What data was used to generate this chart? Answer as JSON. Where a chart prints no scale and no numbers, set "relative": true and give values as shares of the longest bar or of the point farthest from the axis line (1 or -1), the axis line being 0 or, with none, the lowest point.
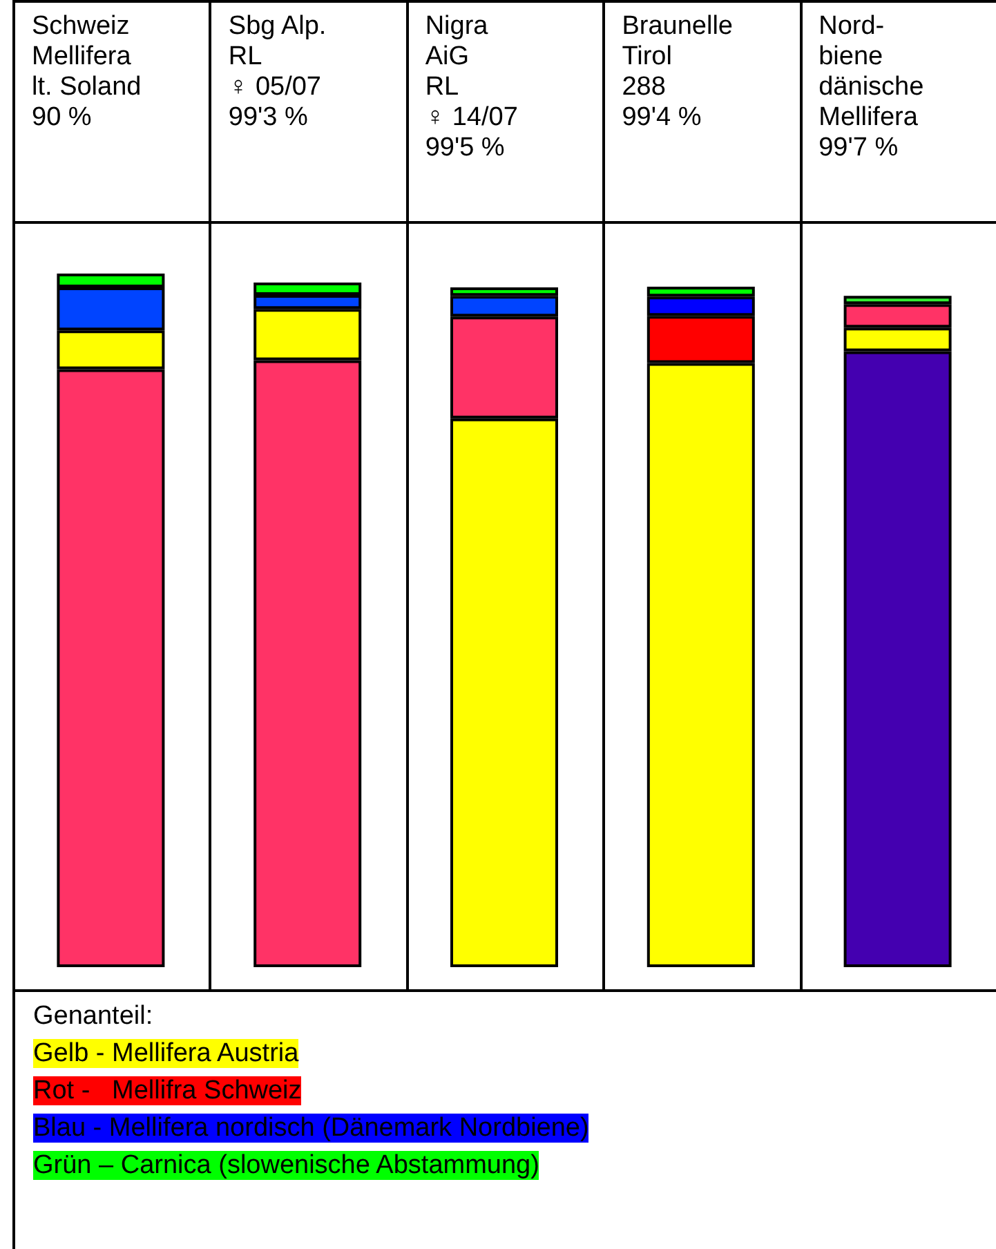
{
  "chart_data": {
    "type": "bar",
    "stacked": true,
    "relative": true,
    "categories": [
      "Schweiz\nMellifera\nlt. Soland\n90 %",
      "Sbg Alp.\nRL\n♀ 05/07\n99'3 %",
      "Nigra\nAiG\nRL\n♀ 14/07\n99'5 %",
      "Braunelle\nTirol\n288\n99'4 %",
      "Nord-\nbiene\ndänische\nMellifera\n99'7 %"
    ],
    "series": [
      {
        "colors": [
          "#ff3366",
          "#ff3366",
          "#ffff00",
          "#ffff00",
          "#4400b0"
        ],
        "values": [
          0.862,
          0.875,
          0.791,
          0.871,
          0.888
        ]
      },
      {
        "colors": [
          "#ffff00",
          "#ffff00",
          "#ff3366",
          "#ff0000",
          "#ffff00"
        ],
        "values": [
          0.056,
          0.074,
          0.147,
          0.068,
          0.034
        ]
      },
      {
        "colors": [
          "#0044ff",
          "#0044ff",
          "#0044ff",
          "#0000ff",
          "#ff3366"
        ],
        "values": [
          0.062,
          0.02,
          0.03,
          0.028,
          0.034
        ]
      },
      {
        "colors": [
          "#00ff00",
          "#00ff00",
          "#00ff00",
          "#00ff00",
          "#33ee33"
        ],
        "values": [
          0.02,
          0.018,
          0.012,
          0.014,
          0.012
        ]
      }
    ],
    "legend_title": "Genanteil:",
    "annotations": [
      "Gelb - Mellifera Austria",
      "Rot -   Mellifra Schweiz",
      "Blau - Mellifera nordisch (Dänemark Nordbiene)",
      "Grün – Carnica (slowenische Abstammung)"
    ],
    "grid": false
  }
}
